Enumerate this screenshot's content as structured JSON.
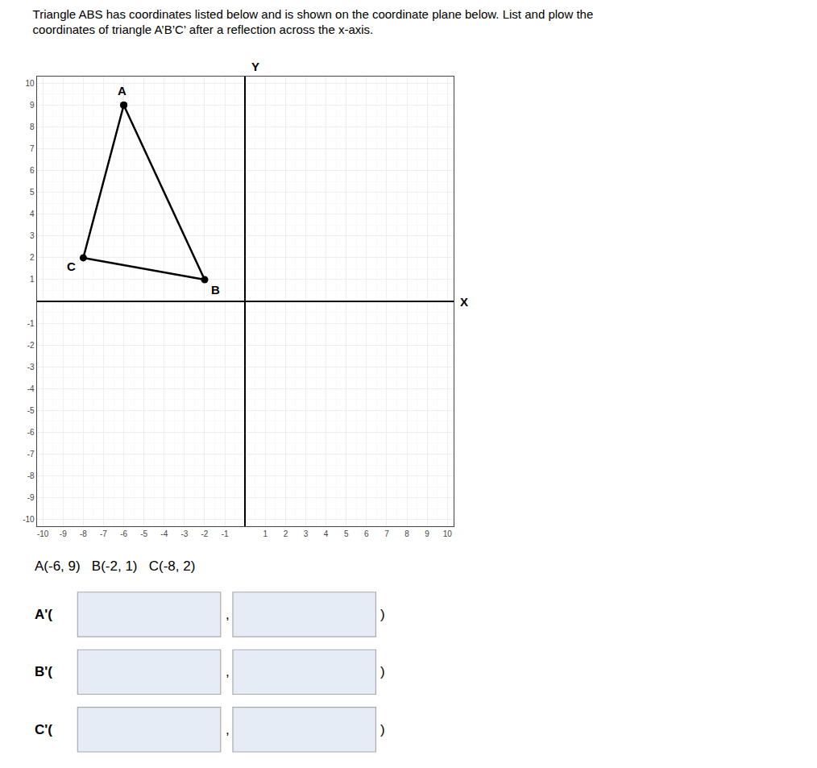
{
  "chart_data": {
    "type": "polygon",
    "title": "Triangle ABS has coordinates listed below and is shown on the coordinate plane below. List and plow the\ncoordinates of triangle A’B’C’ after a reflection across the x-axis.",
    "subtitle": "A(-6, 9)   B(-2, 1)   C(-8, 2)",
    "x_label": "X",
    "y_label": "Y",
    "x": [
      -6,
      -2,
      -8
    ],
    "values": [
      9,
      1,
      2
    ],
    "color": "black",
    "marker": "circle",
    "xlim": [
      -10.3,
      10.3
    ],
    "ylim": [
      -10.3,
      10.3
    ],
    "xticks": [
      -10,
      -9,
      -8,
      -7,
      -6,
      -5,
      -4,
      -3,
      -2,
      -1,
      1,
      2,
      3,
      4,
      5,
      6,
      7,
      8,
      9,
      10
    ],
    "yticks": [
      -10,
      -9,
      -8,
      -7,
      -6,
      -5,
      -4,
      -3,
      -2,
      -1,
      1,
      2,
      3,
      4,
      5,
      6,
      7,
      8,
      9,
      10
    ],
    "grid": true,
    "annotations": [
      {
        "text": "A",
        "x": -6,
        "y": 9
      },
      {
        "text": "B",
        "x": -2,
        "y": 1
      },
      {
        "text": "C",
        "x": -8,
        "y": 2
      }
    ],
    "input_rows": [
      [
        "A'(",
        ",",
        ")"
      ],
      [
        "B'(",
        ",",
        ")"
      ],
      [
        "C'(",
        ",",
        ")"
      ]
    ]
  }
}
